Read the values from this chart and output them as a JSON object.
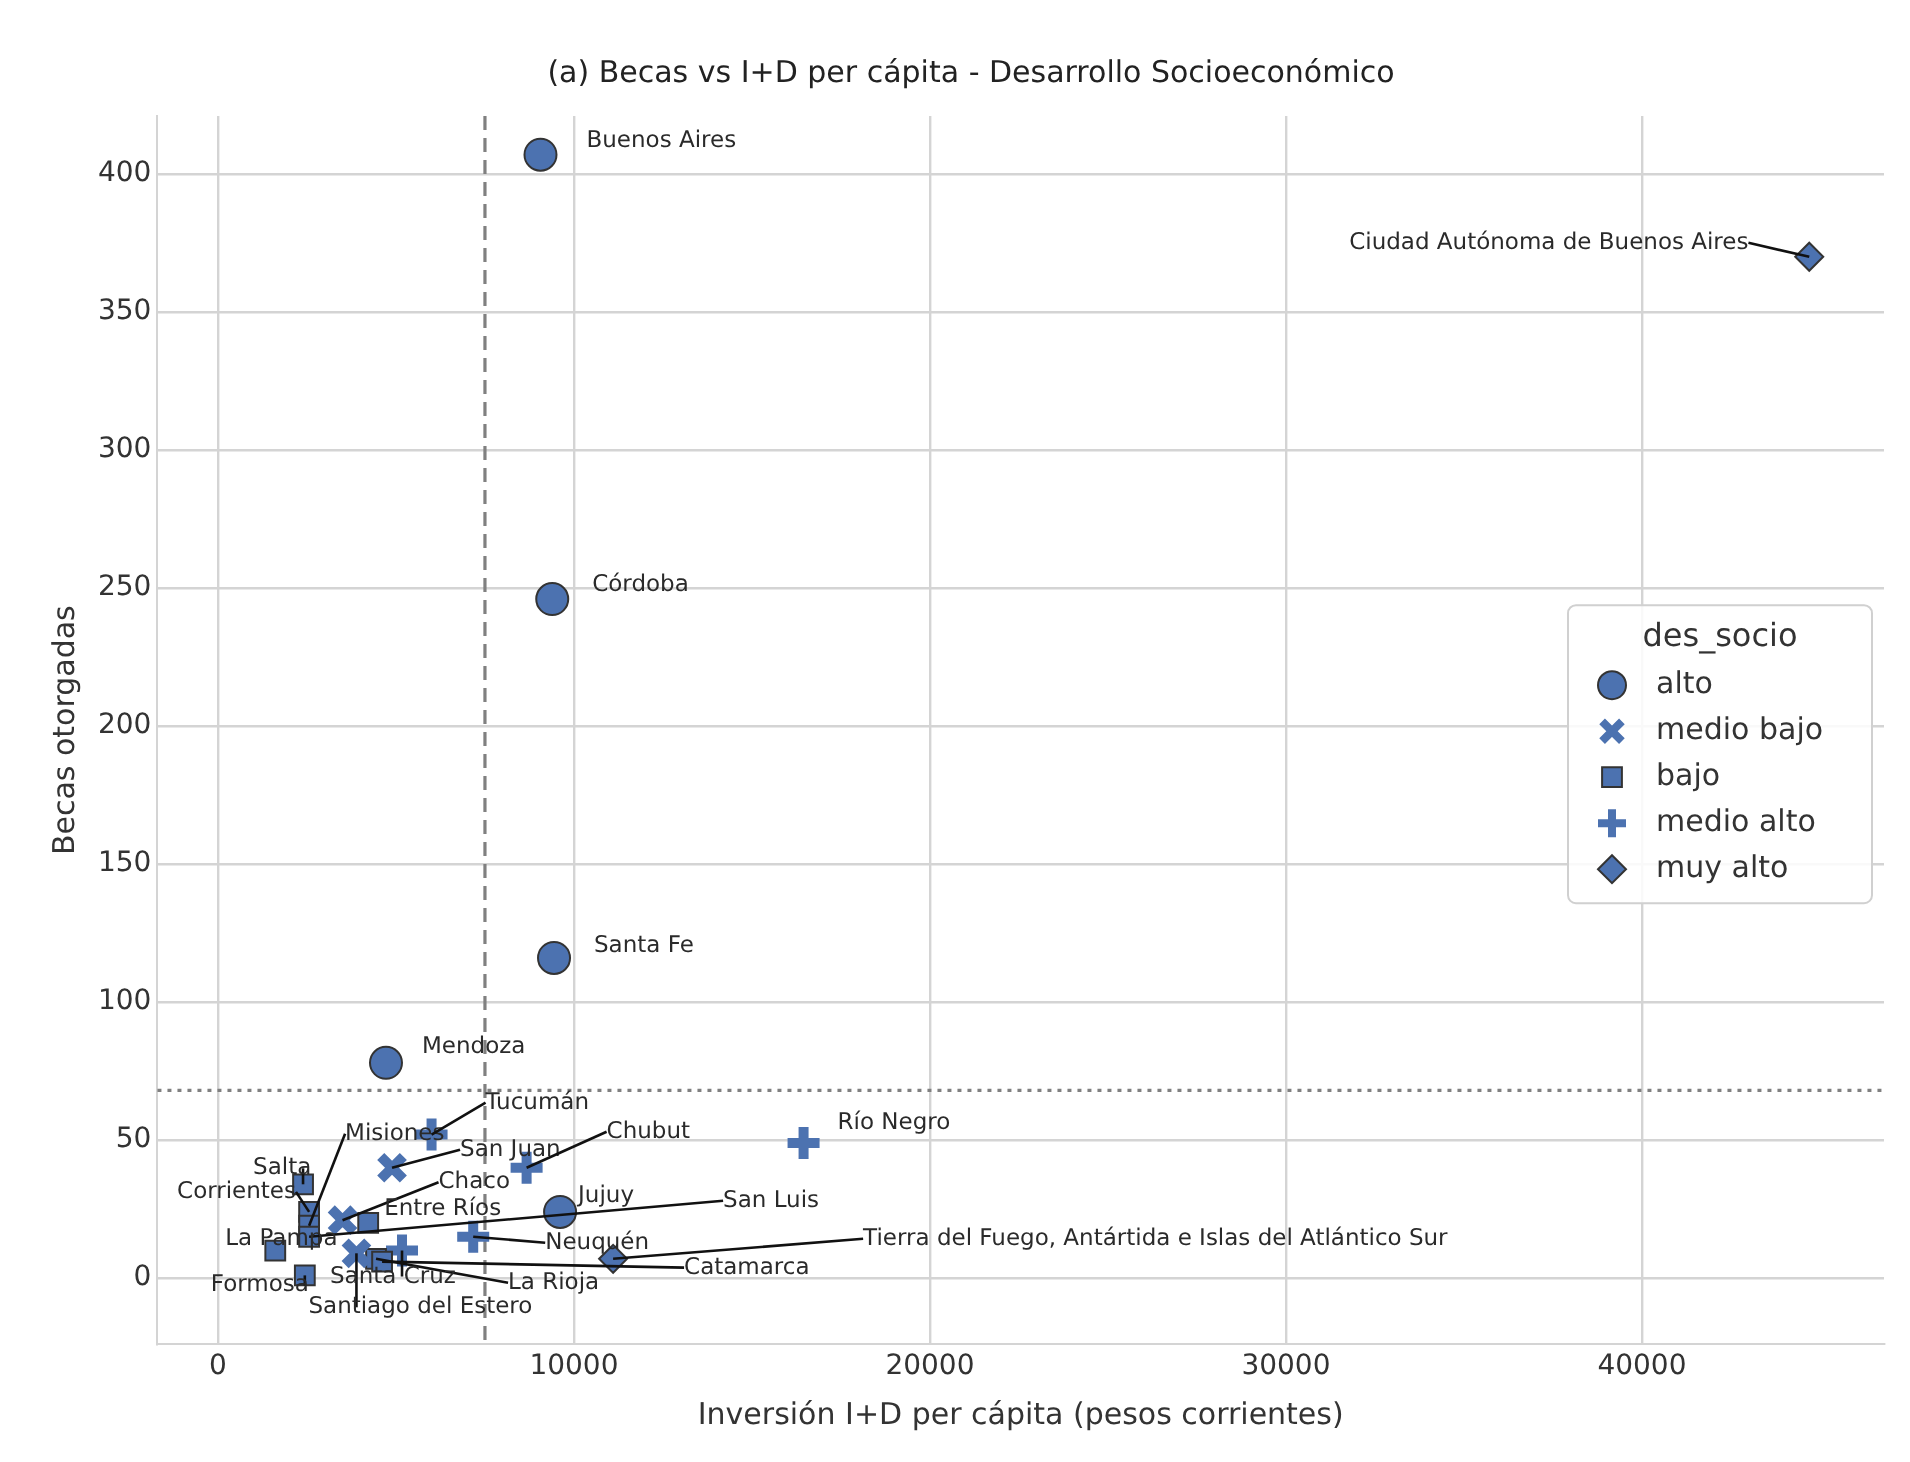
{
  "chart_data": {
    "type": "scatter",
    "title": "(a) Becas vs I+D per cápita - Desarrollo Socioeconómico",
    "xlabel": "Inversión I+D per cápita (pesos corrientes)",
    "ylabel": "Becas otorgadas",
    "legend_title": "des_socio",
    "series": [
      {
        "name": "alto",
        "color": "#4c72b0",
        "marker": "circle",
        "x": [
          9060,
          9390,
          9440,
          4720,
          9610
        ],
        "values": [
          407,
          246,
          116,
          78,
          24
        ]
      },
      {
        "name": "medio bajo",
        "color": "#4c72b0",
        "marker": "cross",
        "x": [
          4890,
          3500,
          3890
        ],
        "values": [
          40,
          21,
          9
        ]
      },
      {
        "name": "bajo",
        "color": "#4c72b0",
        "marker": "square",
        "x": [
          2390,
          2560,
          2560,
          2560,
          4220,
          1610,
          2440,
          4440,
          4610
        ],
        "values": [
          34,
          24,
          19,
          15,
          20,
          10,
          1,
          7,
          6
        ]
      },
      {
        "name": "medio alto",
        "color": "#4c72b0",
        "marker": "plus",
        "x": [
          6000,
          8670,
          16450,
          7170,
          5170
        ],
        "values": [
          52,
          40,
          49,
          15,
          10
        ]
      },
      {
        "name": "muy alto",
        "color": "#4c72b0",
        "marker": "diamond",
        "x": [
          44700,
          11100
        ],
        "values": [
          370,
          7
        ]
      }
    ],
    "annotations": [
      {
        "text": "Buenos Aires",
        "x": 9060,
        "y": 407
      },
      {
        "text": "Ciudad Autónoma de Buenos Aires",
        "x": 44700,
        "y": 370
      },
      {
        "text": "Córdoba",
        "x": 9390,
        "y": 246
      },
      {
        "text": "Santa Fe",
        "x": 9440,
        "y": 116
      },
      {
        "text": "Mendoza",
        "x": 4720,
        "y": 78
      },
      {
        "text": "Jujuy",
        "x": 9610,
        "y": 24
      },
      {
        "text": "San Juan",
        "x": 4890,
        "y": 40
      },
      {
        "text": "Chaco",
        "x": 3500,
        "y": 21
      },
      {
        "text": "Santiago del Estero",
        "x": 3890,
        "y": 9
      },
      {
        "text": "Salta",
        "x": 2390,
        "y": 34
      },
      {
        "text": "Corrientes",
        "x": 2560,
        "y": 24
      },
      {
        "text": "Misiones",
        "x": 2560,
        "y": 19
      },
      {
        "text": "Entre Ríos",
        "x": 4220,
        "y": 20
      },
      {
        "text": "San Luis",
        "x": 2560,
        "y": 15
      },
      {
        "text": "La Pampa",
        "x": 1610,
        "y": 10
      },
      {
        "text": "Formosa",
        "x": 2440,
        "y": 1
      },
      {
        "text": "La Rioja",
        "x": 4440,
        "y": 7
      },
      {
        "text": "Catamarca",
        "x": 4610,
        "y": 6
      },
      {
        "text": "Tucumán",
        "x": 6000,
        "y": 52
      },
      {
        "text": "Chubut",
        "x": 8670,
        "y": 40
      },
      {
        "text": "Río Negro",
        "x": 16450,
        "y": 49
      },
      {
        "text": "Neuquén",
        "x": 7170,
        "y": 15
      },
      {
        "text": "Santa Cruz",
        "x": 5170,
        "y": 10
      },
      {
        "text": "Tierra del Fuego, Antártida e Islas del Atlántico Sur",
        "x": 11100,
        "y": 7
      }
    ],
    "xlim": [
      -1700,
      46800
    ],
    "ylim": [
      -24,
      421
    ],
    "xticks": [
      0,
      10000,
      20000,
      30000,
      40000
    ],
    "yticks": [
      0,
      50,
      100,
      150,
      200,
      250,
      300,
      350,
      400
    ],
    "ref_lines": [
      {
        "axis": "x",
        "value": 7500,
        "color": "#808080",
        "line_style": "dashed"
      },
      {
        "axis": "y",
        "value": 68,
        "color": "#808080",
        "line_style": "dotted"
      }
    ],
    "grid": true,
    "legend": "center right"
  }
}
